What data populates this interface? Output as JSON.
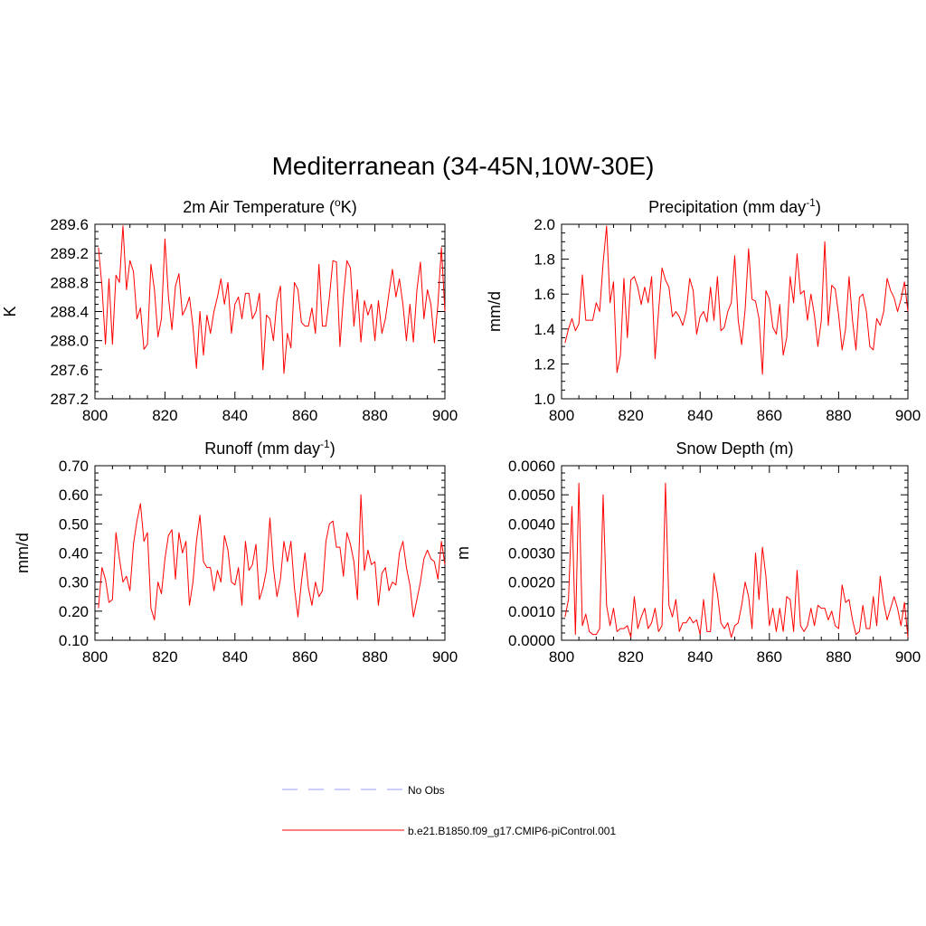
{
  "figure": {
    "title": "Mediterranean (34-45N,10W-30E)"
  },
  "colors": {
    "series": "#ff0000",
    "obs": "#9999ff",
    "axis": "#000000"
  },
  "legend": {
    "position": "bottom-center",
    "items": [
      {
        "label": "No Obs",
        "style": "dashed",
        "color": "#9999ff"
      },
      {
        "label": "b.e21.B1850.f09_g17.CMIP6-piControl.001",
        "style": "solid",
        "color": "#ff0000"
      }
    ]
  },
  "chart_data": [
    {
      "type": "line",
      "title_main": "2m Air Temperature (",
      "title_sup": "o",
      "title_after": "K)",
      "ylabel": "K",
      "xlim": [
        800,
        900
      ],
      "ylim": [
        287.2,
        289.6
      ],
      "xticks": [
        "800",
        "820",
        "840",
        "860",
        "880",
        "900"
      ],
      "yticks": [
        "287.2",
        "287.6",
        "288.0",
        "288.4",
        "288.8",
        "289.2",
        "289.6"
      ],
      "x_start": 801,
      "series": [
        {
          "values": [
            289.28,
            288.75,
            287.95,
            288.85,
            287.95,
            288.9,
            288.8,
            289.58,
            288.7,
            289.1,
            288.95,
            288.3,
            288.45,
            287.88,
            287.95,
            289.05,
            288.7,
            288.05,
            288.3,
            289.4,
            288.6,
            288.15,
            288.75,
            288.92,
            288.35,
            288.45,
            288.6,
            288.2,
            287.62,
            288.4,
            287.8,
            288.35,
            288.1,
            288.4,
            288.6,
            288.85,
            288.5,
            288.8,
            288.1,
            288.5,
            288.6,
            288.3,
            288.65,
            288.65,
            288.3,
            288.4,
            288.65,
            287.6,
            288.35,
            288.3,
            288.0,
            288.55,
            288.75,
            287.55,
            288.1,
            287.9,
            288.8,
            288.7,
            288.25,
            288.2,
            288.2,
            288.45,
            288.1,
            289.05,
            288.2,
            288.2,
            288.6,
            289.1,
            289.08,
            287.92,
            288.6,
            289.1,
            289.0,
            288.2,
            288.7,
            287.98,
            288.55,
            288.35,
            288.5,
            288.0,
            288.55,
            288.1,
            288.3,
            288.65,
            288.98,
            288.6,
            288.85,
            288.5,
            288.0,
            288.5,
            287.98,
            288.7,
            289.08,
            288.3,
            288.7,
            288.5,
            287.97,
            288.5,
            289.28,
            288.4
          ]
        }
      ]
    },
    {
      "type": "line",
      "title_main": "Precipitation (mm day",
      "title_sup": "-1",
      "title_after": ")",
      "ylabel": "mm/d",
      "xlim": [
        800,
        900
      ],
      "ylim": [
        1.0,
        2.0
      ],
      "xticks": [
        "800",
        "820",
        "840",
        "860",
        "880",
        "900"
      ],
      "yticks": [
        "1.0",
        "1.2",
        "1.4",
        "1.6",
        "1.8",
        "2.0"
      ],
      "x_start": 801,
      "series": [
        {
          "values": [
            1.32,
            1.4,
            1.46,
            1.39,
            1.43,
            1.71,
            1.45,
            1.45,
            1.45,
            1.55,
            1.5,
            1.78,
            1.99,
            1.55,
            1.67,
            1.15,
            1.25,
            1.69,
            1.35,
            1.68,
            1.7,
            1.64,
            1.54,
            1.64,
            1.55,
            1.7,
            1.23,
            1.5,
            1.75,
            1.68,
            1.64,
            1.47,
            1.5,
            1.47,
            1.42,
            1.5,
            1.69,
            1.62,
            1.37,
            1.47,
            1.5,
            1.44,
            1.64,
            1.45,
            1.7,
            1.39,
            1.41,
            1.5,
            1.55,
            1.82,
            1.45,
            1.31,
            1.51,
            1.86,
            1.57,
            1.56,
            1.46,
            1.14,
            1.62,
            1.57,
            1.41,
            1.37,
            1.54,
            1.25,
            1.35,
            1.7,
            1.55,
            1.83,
            1.6,
            1.62,
            1.45,
            1.6,
            1.48,
            1.3,
            1.45,
            1.9,
            1.42,
            1.65,
            1.63,
            1.48,
            1.28,
            1.4,
            1.7,
            1.45,
            1.28,
            1.58,
            1.6,
            1.5,
            1.3,
            1.28,
            1.46,
            1.42,
            1.5,
            1.69,
            1.62,
            1.58,
            1.5,
            1.57,
            1.67,
            1.5
          ]
        }
      ]
    },
    {
      "type": "line",
      "title_main": "Runoff (mm day",
      "title_sup": "-1",
      "title_after": ")",
      "ylabel": "mm/d",
      "xlim": [
        800,
        900
      ],
      "ylim": [
        0.1,
        0.7
      ],
      "xticks": [
        "800",
        "820",
        "840",
        "860",
        "880",
        "900"
      ],
      "yticks": [
        "0.10",
        "0.20",
        "0.30",
        "0.40",
        "0.50",
        "0.60",
        "0.70"
      ],
      "x_start": 801,
      "series": [
        {
          "values": [
            0.21,
            0.35,
            0.31,
            0.23,
            0.24,
            0.47,
            0.38,
            0.3,
            0.32,
            0.27,
            0.43,
            0.51,
            0.57,
            0.44,
            0.47,
            0.21,
            0.17,
            0.3,
            0.26,
            0.38,
            0.46,
            0.48,
            0.31,
            0.47,
            0.4,
            0.44,
            0.22,
            0.3,
            0.44,
            0.53,
            0.37,
            0.35,
            0.35,
            0.27,
            0.34,
            0.3,
            0.46,
            0.41,
            0.3,
            0.29,
            0.35,
            0.22,
            0.44,
            0.34,
            0.36,
            0.43,
            0.24,
            0.28,
            0.34,
            0.52,
            0.35,
            0.25,
            0.31,
            0.44,
            0.37,
            0.44,
            0.28,
            0.18,
            0.3,
            0.4,
            0.28,
            0.22,
            0.3,
            0.25,
            0.27,
            0.44,
            0.5,
            0.51,
            0.42,
            0.42,
            0.32,
            0.47,
            0.43,
            0.37,
            0.24,
            0.6,
            0.34,
            0.41,
            0.36,
            0.37,
            0.22,
            0.33,
            0.35,
            0.27,
            0.3,
            0.29,
            0.4,
            0.44,
            0.35,
            0.29,
            0.18,
            0.24,
            0.3,
            0.38,
            0.41,
            0.38,
            0.37,
            0.31,
            0.44,
            0.36
          ]
        }
      ]
    },
    {
      "type": "line",
      "title_main": "Snow Depth (m)",
      "title_sup": "",
      "title_after": "",
      "ylabel": "m",
      "xlim": [
        800,
        900
      ],
      "ylim": [
        0.0,
        0.006
      ],
      "xticks": [
        "800",
        "820",
        "840",
        "860",
        "880",
        "900"
      ],
      "yticks": [
        "0.0000",
        "0.0010",
        "0.0020",
        "0.0030",
        "0.0040",
        "0.0050",
        "0.0060"
      ],
      "x_start": 801,
      "series": [
        {
          "values": [
            0.0008,
            0.0014,
            0.0046,
            0.0002,
            0.0054,
            0.0005,
            0.0009,
            0.0003,
            0.0002,
            0.0002,
            0.0004,
            0.005,
            0.0012,
            0.0005,
            0.0011,
            0.0003,
            0.0004,
            0.0004,
            0.0005,
            0.0001,
            0.0015,
            0.0004,
            0.0008,
            0.0011,
            0.0004,
            0.0006,
            0.0011,
            0.0003,
            0.0005,
            0.0054,
            0.0012,
            0.0008,
            0.0014,
            0.0003,
            0.0006,
            0.0006,
            0.0008,
            0.0006,
            0.0007,
            0.0002,
            0.0014,
            0.0003,
            0.0003,
            0.0023,
            0.0016,
            0.0006,
            0.0004,
            0.0006,
            0.0001,
            0.0005,
            0.0006,
            0.0012,
            0.002,
            0.0015,
            0.0004,
            0.003,
            0.0014,
            0.0032,
            0.0022,
            0.0005,
            0.0011,
            0.0003,
            0.0011,
            0.0003,
            0.0015,
            0.0014,
            0.0003,
            0.0024,
            0.0005,
            0.0003,
            0.0005,
            0.0011,
            0.0005,
            0.0012,
            0.0011,
            0.0011,
            0.0007,
            0.001,
            0.0005,
            0.0004,
            0.0019,
            0.0013,
            0.0014,
            0.0007,
            0.0002,
            0.0003,
            0.0012,
            0.0004,
            0.0004,
            0.0015,
            0.0005,
            0.0022,
            0.0013,
            0.0007,
            0.0011,
            0.0015,
            0.0011,
            0.0005,
            0.0013,
            0.0001
          ]
        }
      ]
    }
  ]
}
